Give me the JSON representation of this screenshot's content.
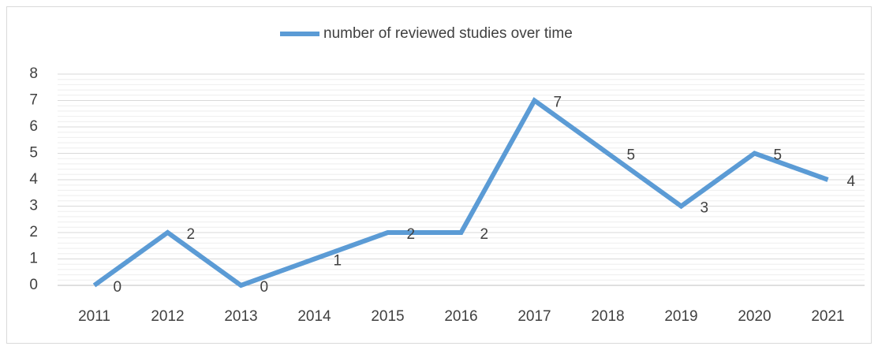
{
  "chart_data": {
    "type": "line",
    "categories": [
      "2011",
      "2012",
      "2013",
      "2014",
      "2015",
      "2016",
      "2017",
      "2018",
      "2019",
      "2020",
      "2021"
    ],
    "series": [
      {
        "name": "number of reviewed studies over time",
        "color": "#5b9bd5",
        "values": [
          0,
          2,
          0,
          1,
          2,
          2,
          7,
          5,
          3,
          5,
          4
        ]
      }
    ],
    "ylim": [
      0,
      8
    ],
    "yticks": [
      0,
      1,
      2,
      3,
      4,
      5,
      6,
      7,
      8
    ],
    "grid": true,
    "legend": "top"
  }
}
